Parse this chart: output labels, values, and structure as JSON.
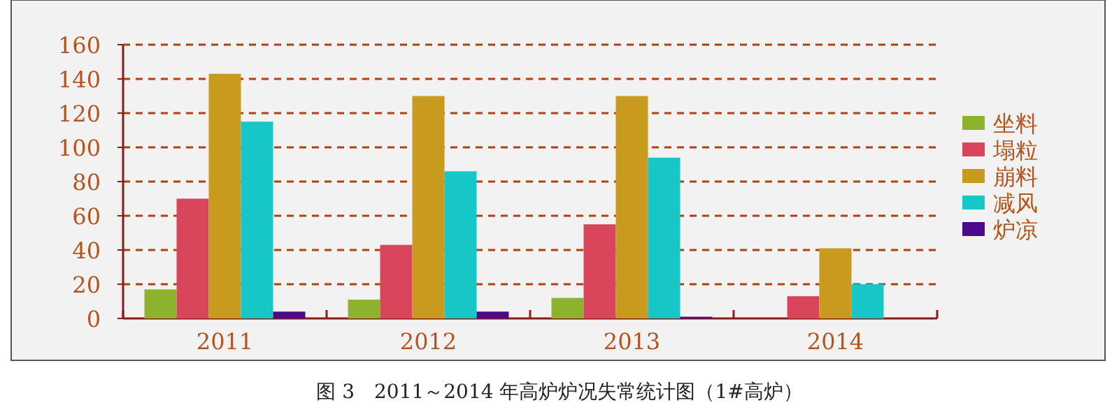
{
  "chart_data": {
    "type": "bar",
    "categories": [
      "2011",
      "2012",
      "2013",
      "2014"
    ],
    "series": [
      {
        "name": "坐料",
        "color": "#8db32e",
        "values": [
          17,
          11,
          12,
          0
        ]
      },
      {
        "name": "塌粒",
        "color": "#d9455a",
        "values": [
          70,
          43,
          55,
          13
        ]
      },
      {
        "name": "崩料",
        "color": "#c89a1e",
        "values": [
          143,
          130,
          130,
          41
        ]
      },
      {
        "name": "减风",
        "color": "#17c7c7",
        "values": [
          115,
          86,
          94,
          20
        ]
      },
      {
        "name": "炉凉",
        "color": "#4a0a8a",
        "values": [
          4,
          4,
          1,
          0
        ]
      }
    ],
    "ylim": [
      0,
      160
    ],
    "yticks": [
      0,
      20,
      40,
      60,
      80,
      100,
      120,
      140,
      160
    ],
    "grid": "y",
    "legend": "right",
    "annotations": [
      "图 3　2011～2014 年高炉炉况失常统计图（1#高炉）"
    ]
  }
}
